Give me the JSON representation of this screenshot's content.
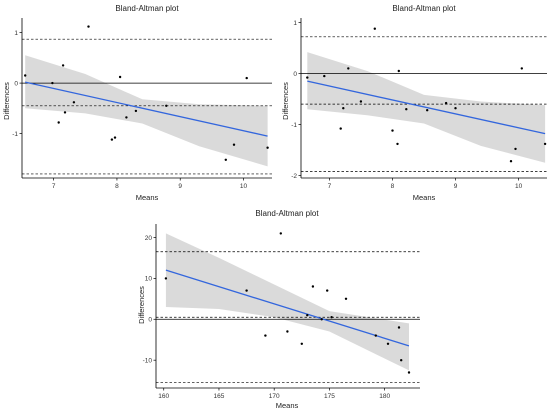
{
  "colors": {
    "background": "#ffffff",
    "band": "#d3d3d3",
    "regression": "#3366dd",
    "points": "#000000",
    "axis": "#000000",
    "reference_line": "#000000"
  },
  "chart_data": [
    {
      "type": "scatter",
      "title": "Bland-Altman plot",
      "xlabel": "Means",
      "ylabel": "Differences",
      "xlim": [
        6.5,
        10.45
      ],
      "ylim": [
        -1.88,
        1.25
      ],
      "xticks": [
        7,
        8,
        9,
        10
      ],
      "yticks": [
        1,
        0,
        -1
      ],
      "x": [
        6.55,
        6.98,
        7.08,
        7.15,
        7.18,
        7.32,
        7.55,
        7.92,
        7.97,
        8.05,
        8.15,
        8.3,
        8.78,
        9.72,
        9.85,
        10.05,
        10.38
      ],
      "y": [
        0.15,
        0.0,
        -0.78,
        0.35,
        -0.58,
        -0.38,
        1.12,
        -1.12,
        -1.08,
        0.12,
        -0.68,
        -0.55,
        -0.45,
        -1.52,
        -1.22,
        0.1,
        -1.28
      ],
      "hlines": {
        "zero": 0,
        "mean": -0.45,
        "upper_loa": 0.87,
        "lower_loa": -1.8
      },
      "regression": {
        "x": [
          6.55,
          10.38
        ],
        "y": [
          0.02,
          -1.05
        ]
      },
      "confidence_band": {
        "x": [
          6.55,
          7.5,
          8.4,
          9.3,
          10.38
        ],
        "upper": [
          0.55,
          0.18,
          -0.32,
          -0.42,
          -0.45
        ],
        "lower": [
          -0.5,
          -0.6,
          -0.8,
          -1.25,
          -1.65
        ]
      }
    },
    {
      "type": "scatter",
      "title": "Bland-Altman plot",
      "xlabel": "Means",
      "ylabel": "Differences",
      "xlim": [
        6.55,
        10.45
      ],
      "ylim": [
        -2.05,
        1.05
      ],
      "xticks": [
        7,
        8,
        9,
        10
      ],
      "yticks": [
        1,
        0,
        -1,
        -2
      ],
      "x": [
        6.65,
        6.92,
        7.18,
        7.22,
        7.3,
        7.5,
        7.72,
        8.0,
        8.08,
        8.1,
        8.22,
        8.55,
        8.85,
        9.0,
        9.88,
        9.95,
        10.05,
        10.42
      ],
      "y": [
        -0.08,
        -0.05,
        -1.08,
        -0.68,
        0.1,
        -0.55,
        0.88,
        -1.12,
        -1.38,
        0.05,
        -0.7,
        -0.72,
        -0.58,
        -0.68,
        -1.72,
        -1.48,
        0.1,
        -1.38
      ],
      "hlines": {
        "zero": 0,
        "mean": -0.6,
        "upper_loa": 0.72,
        "lower_loa": -1.92
      },
      "regression": {
        "x": [
          6.65,
          10.42
        ],
        "y": [
          -0.15,
          -1.18
        ]
      },
      "confidence_band": {
        "x": [
          6.65,
          7.6,
          8.5,
          9.4,
          10.42
        ],
        "upper": [
          0.42,
          0.05,
          -0.42,
          -0.55,
          -0.62
        ],
        "lower": [
          -0.7,
          -0.82,
          -0.98,
          -1.42,
          -1.75
        ]
      }
    },
    {
      "type": "scatter",
      "title": "Bland-Altman plot",
      "xlabel": "Means",
      "ylabel": "Differences",
      "xlim": [
        159.3,
        183.2
      ],
      "ylim": [
        -16.8,
        22.8
      ],
      "xticks": [
        160,
        165,
        170,
        175,
        180
      ],
      "yticks": [
        20,
        10,
        0,
        -10
      ],
      "x": [
        160.2,
        167.5,
        169.2,
        170.6,
        171.2,
        172.5,
        173.0,
        173.5,
        174.3,
        174.8,
        175.2,
        176.5,
        179.2,
        180.3,
        181.3,
        181.5,
        182.2
      ],
      "y": [
        10.0,
        7.0,
        -4.0,
        21.0,
        -3.0,
        -6.0,
        1.0,
        8.0,
        0.0,
        7.0,
        0.5,
        5.0,
        -4.0,
        -6.0,
        -2.0,
        -10.0,
        -13.0
      ],
      "hlines": {
        "zero": 0,
        "mean": 0.5,
        "upper_loa": 16.5,
        "lower_loa": -15.5
      },
      "regression": {
        "x": [
          160.2,
          182.2
        ],
        "y": [
          12.0,
          -6.5
        ]
      },
      "confidence_band": {
        "x": [
          160.2,
          165.0,
          170.0,
          175.0,
          182.2
        ],
        "upper": [
          21.0,
          15.0,
          8.5,
          2.0,
          -1.0
        ],
        "lower": [
          3.0,
          2.5,
          0.5,
          -3.0,
          -12.5
        ]
      }
    }
  ]
}
